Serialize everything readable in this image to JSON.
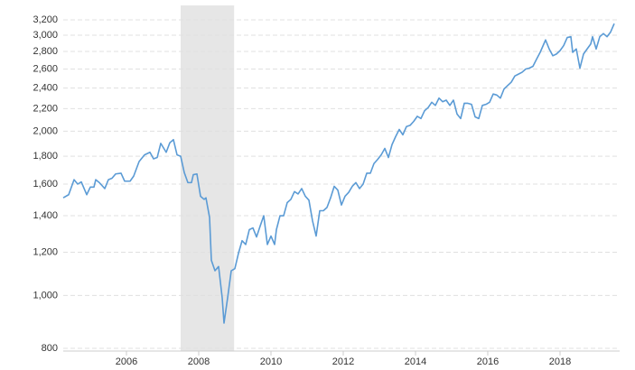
{
  "chart_data": {
    "type": "line",
    "log_scale": true,
    "grid": true,
    "xlim": [
      2004.25,
      2019.65
    ],
    "ylim": [
      800,
      3200
    ],
    "xticks": [
      2006,
      2008,
      2010,
      2012,
      2014,
      2016,
      2018
    ],
    "yticks": [
      800,
      {
        "value": 1000,
        "label": "1,000"
      },
      {
        "value": 1200,
        "label": "1,200"
      },
      {
        "value": 1400,
        "label": "1,400"
      },
      {
        "value": 1600,
        "label": "1,600"
      },
      {
        "value": 1800,
        "label": "1,800"
      },
      {
        "value": 2000,
        "label": "2,000"
      },
      {
        "value": 2200,
        "label": "2,200"
      },
      {
        "value": 2400,
        "label": "2,400"
      },
      {
        "value": 2600,
        "label": "2,600"
      },
      {
        "value": 2800,
        "label": "2,800"
      },
      {
        "value": 3000,
        "label": "3,000"
      },
      {
        "value": 3200,
        "label": "3,200"
      }
    ],
    "shaded_region": [
      2007.5,
      2008.98
    ],
    "shade_color": "#e6e6e6",
    "series": [
      {
        "color": "#5b9bd5",
        "x": [
          2004.25,
          2004.4,
          2004.55,
          2004.65,
          2004.75,
          2004.9,
          2005.0,
          2005.1,
          2005.15,
          2005.25,
          2005.4,
          2005.5,
          2005.6,
          2005.7,
          2005.85,
          2005.95,
          2006.1,
          2006.2,
          2006.35,
          2006.5,
          2006.65,
          2006.75,
          2006.85,
          2006.95,
          2007.1,
          2007.2,
          2007.3,
          2007.4,
          2007.5,
          2007.6,
          2007.7,
          2007.8,
          2007.85,
          2007.95,
          2008.05,
          2008.15,
          2008.2,
          2008.3,
          2008.35,
          2008.45,
          2008.55,
          2008.65,
          2008.7,
          2008.8,
          2008.9,
          2009.0,
          2009.1,
          2009.2,
          2009.3,
          2009.4,
          2009.5,
          2009.6,
          2009.7,
          2009.8,
          2009.9,
          2010.0,
          2010.1,
          2010.15,
          2010.25,
          2010.35,
          2010.45,
          2010.55,
          2010.65,
          2010.75,
          2010.85,
          2010.95,
          2011.05,
          2011.15,
          2011.25,
          2011.35,
          2011.45,
          2011.55,
          2011.65,
          2011.75,
          2011.85,
          2011.95,
          2012.05,
          2012.15,
          2012.25,
          2012.35,
          2012.45,
          2012.55,
          2012.65,
          2012.75,
          2012.85,
          2012.95,
          2013.05,
          2013.15,
          2013.25,
          2013.35,
          2013.45,
          2013.55,
          2013.65,
          2013.75,
          2013.85,
          2013.95,
          2014.05,
          2014.15,
          2014.25,
          2014.35,
          2014.45,
          2014.55,
          2014.65,
          2014.75,
          2014.85,
          2014.95,
          2015.05,
          2015.15,
          2015.25,
          2015.35,
          2015.45,
          2015.55,
          2015.65,
          2015.75,
          2015.85,
          2015.95,
          2016.05,
          2016.15,
          2016.25,
          2016.35,
          2016.45,
          2016.55,
          2016.65,
          2016.75,
          2016.85,
          2016.95,
          2017.05,
          2017.15,
          2017.25,
          2017.35,
          2017.45,
          2017.6,
          2017.7,
          2017.8,
          2017.9,
          2018.0,
          2018.1,
          2018.2,
          2018.3,
          2018.35,
          2018.45,
          2018.55,
          2018.65,
          2018.75,
          2018.85,
          2018.9,
          2019.0,
          2019.1,
          2019.2,
          2019.3,
          2019.4,
          2019.5
        ],
        "values": [
          1510,
          1530,
          1630,
          1600,
          1615,
          1530,
          1580,
          1580,
          1630,
          1610,
          1570,
          1630,
          1640,
          1670,
          1675,
          1620,
          1620,
          1655,
          1760,
          1810,
          1830,
          1780,
          1790,
          1900,
          1830,
          1905,
          1930,
          1810,
          1800,
          1680,
          1610,
          1610,
          1665,
          1670,
          1520,
          1500,
          1510,
          1390,
          1160,
          1110,
          1130,
          990,
          890,
          990,
          1110,
          1120,
          1195,
          1260,
          1240,
          1320,
          1330,
          1280,
          1340,
          1400,
          1240,
          1285,
          1240,
          1320,
          1400,
          1400,
          1480,
          1500,
          1550,
          1535,
          1570,
          1520,
          1495,
          1370,
          1285,
          1430,
          1430,
          1450,
          1510,
          1585,
          1560,
          1465,
          1520,
          1545,
          1585,
          1610,
          1570,
          1600,
          1675,
          1675,
          1745,
          1775,
          1810,
          1860,
          1790,
          1890,
          1955,
          2015,
          1970,
          2040,
          2050,
          2085,
          2130,
          2110,
          2180,
          2210,
          2260,
          2230,
          2300,
          2265,
          2280,
          2230,
          2280,
          2150,
          2110,
          2250,
          2250,
          2240,
          2125,
          2110,
          2230,
          2240,
          2260,
          2340,
          2330,
          2300,
          2390,
          2425,
          2460,
          2525,
          2545,
          2565,
          2600,
          2610,
          2630,
          2710,
          2790,
          2940,
          2830,
          2750,
          2770,
          2810,
          2870,
          2970,
          2980,
          2790,
          2830,
          2610,
          2770,
          2830,
          2890,
          2980,
          2830,
          2980,
          3020,
          2980,
          3040,
          3150
        ]
      }
    ]
  }
}
